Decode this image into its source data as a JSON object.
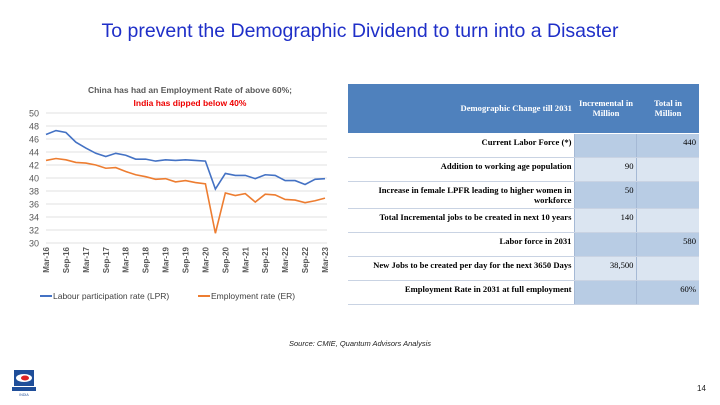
{
  "title": "To prevent the Demographic Dividend to turn into a Disaster",
  "chart_data": {
    "type": "line",
    "title": "China has had an Employment Rate of above 60%;",
    "subtitle": "India has dipped below 40%",
    "ylim": [
      30,
      50
    ],
    "yticks": [
      30,
      32,
      34,
      36,
      38,
      40,
      42,
      44,
      46,
      48,
      50
    ],
    "tick_labels": [
      "Mar-16",
      "Sep-16",
      "Mar-17",
      "Sep-17",
      "Mar-18",
      "Sep-18",
      "Mar-19",
      "Sep-19",
      "Mar-20",
      "Sep-20",
      "Mar-21",
      "Sep-21",
      "Mar-22",
      "Sep-22",
      "Mar-23"
    ],
    "grid": true,
    "legend_position": "bottom",
    "series": [
      {
        "name": "Labour  participation rate  (LPR)",
        "color": "#4472c4",
        "values": [
          46.7,
          47.3,
          47.0,
          45.5,
          44.6,
          43.8,
          43.3,
          43.8,
          43.5,
          42.9,
          42.9,
          42.6,
          42.8,
          42.7,
          42.8,
          42.7,
          42.6,
          38.3,
          40.7,
          40.4,
          40.4,
          39.9,
          40.5,
          40.4,
          39.6,
          39.6,
          39.0,
          39.8,
          39.9
        ]
      },
      {
        "name": "Employment rate (ER)",
        "color": "#ed7d31",
        "values": [
          42.7,
          43.0,
          42.8,
          42.4,
          42.3,
          42.0,
          41.5,
          41.6,
          41.0,
          40.5,
          40.2,
          39.8,
          39.9,
          39.4,
          39.6,
          39.3,
          39.1,
          31.5,
          37.7,
          37.3,
          37.6,
          36.3,
          37.5,
          37.4,
          36.7,
          36.6,
          36.2,
          36.5,
          36.9
        ]
      }
    ]
  },
  "table": {
    "headers": [
      "Demographic Change till 2031",
      "Incremental in Million",
      "Total in Million"
    ],
    "rows": [
      [
        "Current Labor Force (*)",
        "",
        "440"
      ],
      [
        "Addition to working age population",
        "90",
        ""
      ],
      [
        "Increase in female LPFR leading to higher women in workforce",
        "50",
        ""
      ],
      [
        "Total Incremental jobs to be created in next 10 years",
        "140",
        ""
      ],
      [
        "Labor force in 2031",
        "",
        "580"
      ],
      [
        "New Jobs to be created per day for the next 3650 Days",
        "38,500",
        ""
      ],
      [
        "Employment Rate in 2031 at full employment",
        "",
        "60%"
      ]
    ]
  },
  "source": "Source: CMIE, Quantum Advisors Analysis",
  "page_number": "14",
  "logo_text": "QUANTUM INDIA"
}
